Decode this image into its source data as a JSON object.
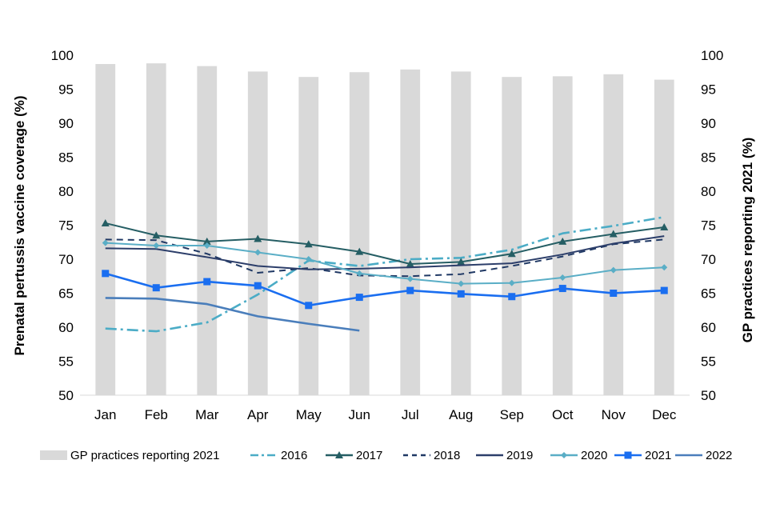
{
  "chart_data": {
    "type": "bar+line",
    "categories": [
      "Jan",
      "Feb",
      "Mar",
      "Apr",
      "May",
      "Jun",
      "Jul",
      "Aug",
      "Sep",
      "Oct",
      "Nov",
      "Dec"
    ],
    "ylabel_left": "Prenatal pertussis vaccine coverage (%)",
    "ylabel_right": "GP practices reporting 2021 (%)",
    "ylim": [
      50,
      100
    ],
    "yticks": [
      "50",
      "55",
      "60",
      "65",
      "70",
      "75",
      "80",
      "85",
      "90",
      "95",
      "100"
    ],
    "bars": {
      "name": "GP practices reporting 2021",
      "color": "#d9d9d9",
      "values": [
        98.7,
        98.8,
        98.4,
        97.6,
        96.8,
        97.5,
        97.9,
        97.6,
        96.8,
        96.9,
        97.2,
        96.4
      ]
    },
    "series": [
      {
        "name": "2016",
        "color": "#4bacc6",
        "dash": "dashdot",
        "marker": "none",
        "values": [
          59.8,
          59.4,
          60.7,
          64.8,
          69.8,
          69.0,
          70.0,
          70.2,
          71.4,
          73.8,
          74.9,
          76.2
        ]
      },
      {
        "name": "2017",
        "color": "#255e64",
        "dash": "solid",
        "marker": "triangle",
        "values": [
          75.3,
          73.5,
          72.6,
          73.0,
          72.2,
          71.1,
          69.3,
          69.6,
          70.8,
          72.6,
          73.7,
          74.7
        ]
      },
      {
        "name": "2018",
        "color": "#1f3864",
        "dash": "dash",
        "marker": "none",
        "values": [
          72.9,
          72.8,
          70.8,
          68.0,
          68.7,
          67.6,
          67.5,
          67.8,
          69.0,
          70.4,
          72.2,
          72.9
        ]
      },
      {
        "name": "2019",
        "color": "#2c3e6a",
        "dash": "solid",
        "marker": "none",
        "values": [
          71.6,
          71.5,
          70.3,
          69.0,
          68.5,
          68.6,
          68.8,
          69.1,
          69.4,
          70.7,
          72.3,
          73.4
        ]
      },
      {
        "name": "2020",
        "color": "#5aaec6",
        "dash": "solid",
        "marker": "diamond",
        "values": [
          72.4,
          72.0,
          72.0,
          71.0,
          70.0,
          67.9,
          67.1,
          66.4,
          66.5,
          67.3,
          68.4,
          68.8
        ]
      },
      {
        "name": "2021",
        "color": "#1a6ef0",
        "dash": "solid",
        "marker": "square",
        "values": [
          67.9,
          65.8,
          66.7,
          66.1,
          63.2,
          64.4,
          65.4,
          64.9,
          64.5,
          65.7,
          65.0,
          65.4
        ]
      },
      {
        "name": "2022",
        "color": "#4a7ebb",
        "dash": "solid",
        "marker": "none",
        "values": [
          64.3,
          64.2,
          63.4,
          61.6,
          60.5,
          59.5,
          null,
          null,
          null,
          null,
          null,
          null
        ]
      }
    ],
    "legend": [
      "GP practices reporting 2021",
      "2016",
      "2017",
      "2018",
      "2019",
      "2020",
      "2021",
      "2022"
    ],
    "legend_position": "bottom"
  }
}
